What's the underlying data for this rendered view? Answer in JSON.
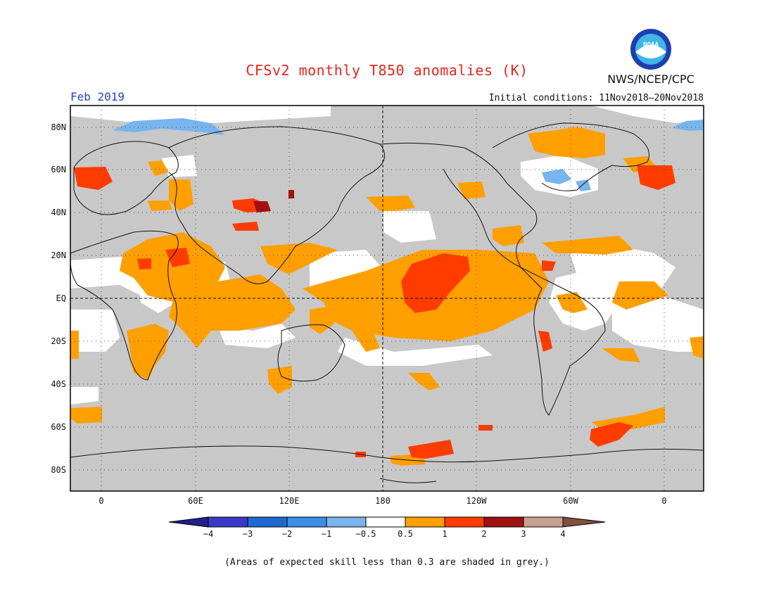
{
  "header": {
    "title": "CFSv2 monthly T850 anomalies (K)",
    "month": "Feb 2019",
    "initial_conditions": "Initial conditions: 11Nov2018–20Nov2018",
    "agency": "NWS/NCEP/CPC",
    "logo_text": "NOAA"
  },
  "map": {
    "lat_labels": [
      "80N",
      "60N",
      "40N",
      "20N",
      "EQ",
      "20S",
      "40S",
      "60S",
      "80S"
    ],
    "lon_labels": [
      "0",
      "60E",
      "120E",
      "180",
      "120W",
      "60W",
      "0"
    ],
    "colors": {
      "no_skill": "#c8c8c8",
      "ocean_base": "#ffffff"
    }
  },
  "colorbar": {
    "labels": [
      "−4",
      "−3",
      "−2",
      "−1",
      "−0.5",
      "0.5",
      "1",
      "2",
      "3",
      "4"
    ],
    "colors": [
      "#20208c",
      "#3a3ac8",
      "#1e6ad2",
      "#3c8ee6",
      "#78b4ee",
      "#ffffff",
      "#ff9f00",
      "#ff3c00",
      "#a01010",
      "#c8a090",
      "#805040"
    ]
  },
  "footnote": "(Areas of expected skill less than 0.3 are shaded in grey.)"
}
